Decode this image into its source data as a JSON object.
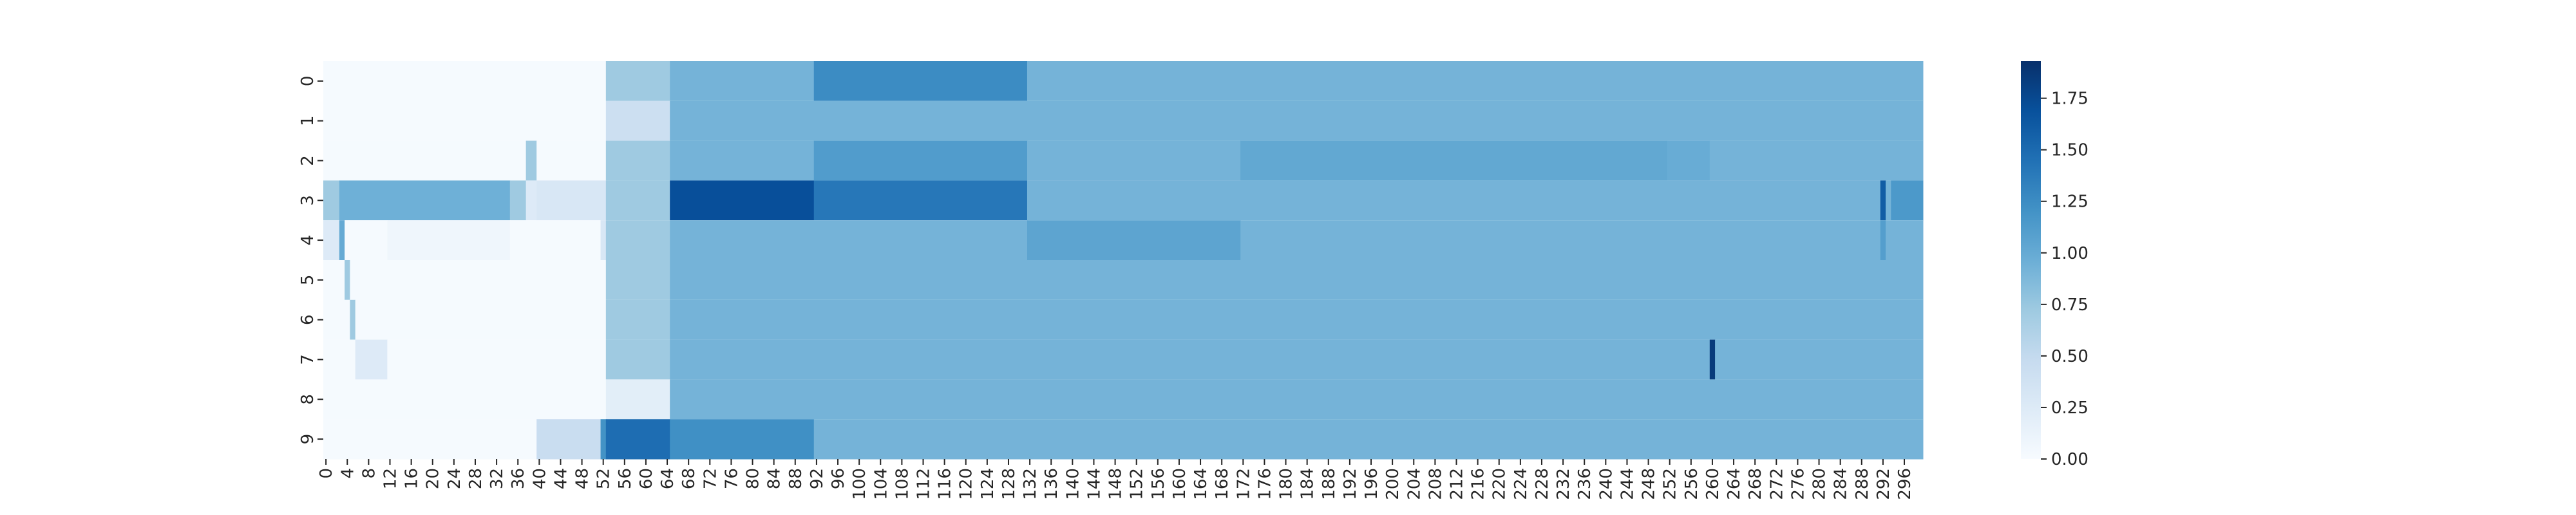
{
  "chart_data": {
    "type": "heatmap",
    "title": "",
    "xlabel": "",
    "ylabel": "",
    "x_count": 300,
    "x_tick_labels": [
      "0",
      "4",
      "8",
      "12",
      "16",
      "20",
      "24",
      "28",
      "32",
      "36",
      "40",
      "44",
      "48",
      "52",
      "56",
      "60",
      "64",
      "68",
      "72",
      "76",
      "80",
      "84",
      "88",
      "92",
      "96",
      "100",
      "104",
      "108",
      "112",
      "116",
      "120",
      "124",
      "128",
      "132",
      "136",
      "140",
      "144",
      "148",
      "152",
      "156",
      "160",
      "164",
      "168",
      "172",
      "176",
      "180",
      "184",
      "188",
      "192",
      "196",
      "200",
      "204",
      "208",
      "212",
      "216",
      "220",
      "224",
      "228",
      "232",
      "236",
      "240",
      "244",
      "248",
      "252",
      "256",
      "260",
      "264",
      "268",
      "272",
      "276",
      "280",
      "284",
      "288",
      "292",
      "296"
    ],
    "y_tick_labels": [
      "0",
      "1",
      "2",
      "3",
      "4",
      "5",
      "6",
      "7",
      "8",
      "9"
    ],
    "colormap": "Blues",
    "colormap_stops": [
      "#f7fbff",
      "#deebf7",
      "#c6dbef",
      "#9ecae1",
      "#6baed6",
      "#4292c6",
      "#2171b5",
      "#08519c",
      "#08306b"
    ],
    "vmin": 0.0,
    "vmax": 1.93,
    "colorbar_ticks": [
      0.0,
      0.25,
      0.5,
      0.75,
      1.0,
      1.25,
      1.5,
      1.75
    ],
    "colorbar_tick_labels": [
      "0.00",
      "0.25",
      "0.50",
      "0.75",
      "1.00",
      "1.25",
      "1.50",
      "1.75"
    ],
    "rows": [
      {
        "label": "0",
        "default": 0.0,
        "segments": [
          [
            0,
            53,
            0.02
          ],
          [
            53,
            65,
            0.72
          ],
          [
            65,
            92,
            0.92
          ],
          [
            92,
            132,
            1.25
          ],
          [
            132,
            300,
            0.92
          ]
        ]
      },
      {
        "label": "1",
        "default": 0.0,
        "segments": [
          [
            0,
            53,
            0.02
          ],
          [
            53,
            65,
            0.42
          ],
          [
            65,
            300,
            0.92
          ]
        ]
      },
      {
        "label": "2",
        "default": 0.0,
        "segments": [
          [
            0,
            38,
            0.02
          ],
          [
            38,
            40,
            0.72
          ],
          [
            40,
            53,
            0.02
          ],
          [
            53,
            65,
            0.72
          ],
          [
            65,
            92,
            0.92
          ],
          [
            92,
            132,
            1.12
          ],
          [
            132,
            172,
            0.92
          ],
          [
            172,
            252,
            1.02
          ],
          [
            252,
            260,
            0.98
          ],
          [
            260,
            300,
            0.92
          ]
        ]
      },
      {
        "label": "3",
        "default": 0.0,
        "segments": [
          [
            0,
            3,
            0.72
          ],
          [
            3,
            35,
            0.95
          ],
          [
            35,
            38,
            0.72
          ],
          [
            38,
            40,
            0.25
          ],
          [
            40,
            53,
            0.3
          ],
          [
            53,
            65,
            0.72
          ],
          [
            65,
            92,
            1.7
          ],
          [
            92,
            132,
            1.4
          ],
          [
            132,
            292,
            0.92
          ],
          [
            292,
            293,
            1.6
          ],
          [
            293,
            294,
            0.92
          ],
          [
            294,
            300,
            1.15
          ]
        ]
      },
      {
        "label": "4",
        "default": 0.0,
        "segments": [
          [
            0,
            3,
            0.25
          ],
          [
            3,
            4,
            1.0
          ],
          [
            4,
            12,
            0.02
          ],
          [
            12,
            35,
            0.08
          ],
          [
            35,
            52,
            0.02
          ],
          [
            52,
            53,
            0.3
          ],
          [
            53,
            65,
            0.72
          ],
          [
            65,
            132,
            0.92
          ],
          [
            132,
            172,
            1.05
          ],
          [
            172,
            292,
            0.92
          ],
          [
            292,
            293,
            1.1
          ],
          [
            293,
            300,
            0.92
          ]
        ]
      },
      {
        "label": "5",
        "default": 0.0,
        "segments": [
          [
            0,
            4,
            0.02
          ],
          [
            4,
            5,
            0.72
          ],
          [
            5,
            53,
            0.02
          ],
          [
            53,
            65,
            0.72
          ],
          [
            65,
            300,
            0.92
          ]
        ]
      },
      {
        "label": "6",
        "default": 0.0,
        "segments": [
          [
            0,
            5,
            0.02
          ],
          [
            5,
            6,
            0.72
          ],
          [
            6,
            53,
            0.02
          ],
          [
            53,
            65,
            0.72
          ],
          [
            65,
            300,
            0.92
          ]
        ]
      },
      {
        "label": "7",
        "default": 0.0,
        "segments": [
          [
            0,
            6,
            0.02
          ],
          [
            6,
            12,
            0.25
          ],
          [
            12,
            53,
            0.02
          ],
          [
            53,
            65,
            0.72
          ],
          [
            65,
            260,
            0.92
          ],
          [
            260,
            261,
            1.85
          ],
          [
            261,
            300,
            0.92
          ]
        ]
      },
      {
        "label": "8",
        "default": 0.0,
        "segments": [
          [
            0,
            53,
            0.02
          ],
          [
            53,
            65,
            0.2
          ],
          [
            65,
            300,
            0.92
          ]
        ]
      },
      {
        "label": "9",
        "default": 0.0,
        "segments": [
          [
            0,
            40,
            0.02
          ],
          [
            40,
            52,
            0.45
          ],
          [
            52,
            53,
            1.2
          ],
          [
            53,
            65,
            1.48
          ],
          [
            65,
            92,
            1.22
          ],
          [
            92,
            300,
            0.92
          ]
        ]
      }
    ]
  }
}
